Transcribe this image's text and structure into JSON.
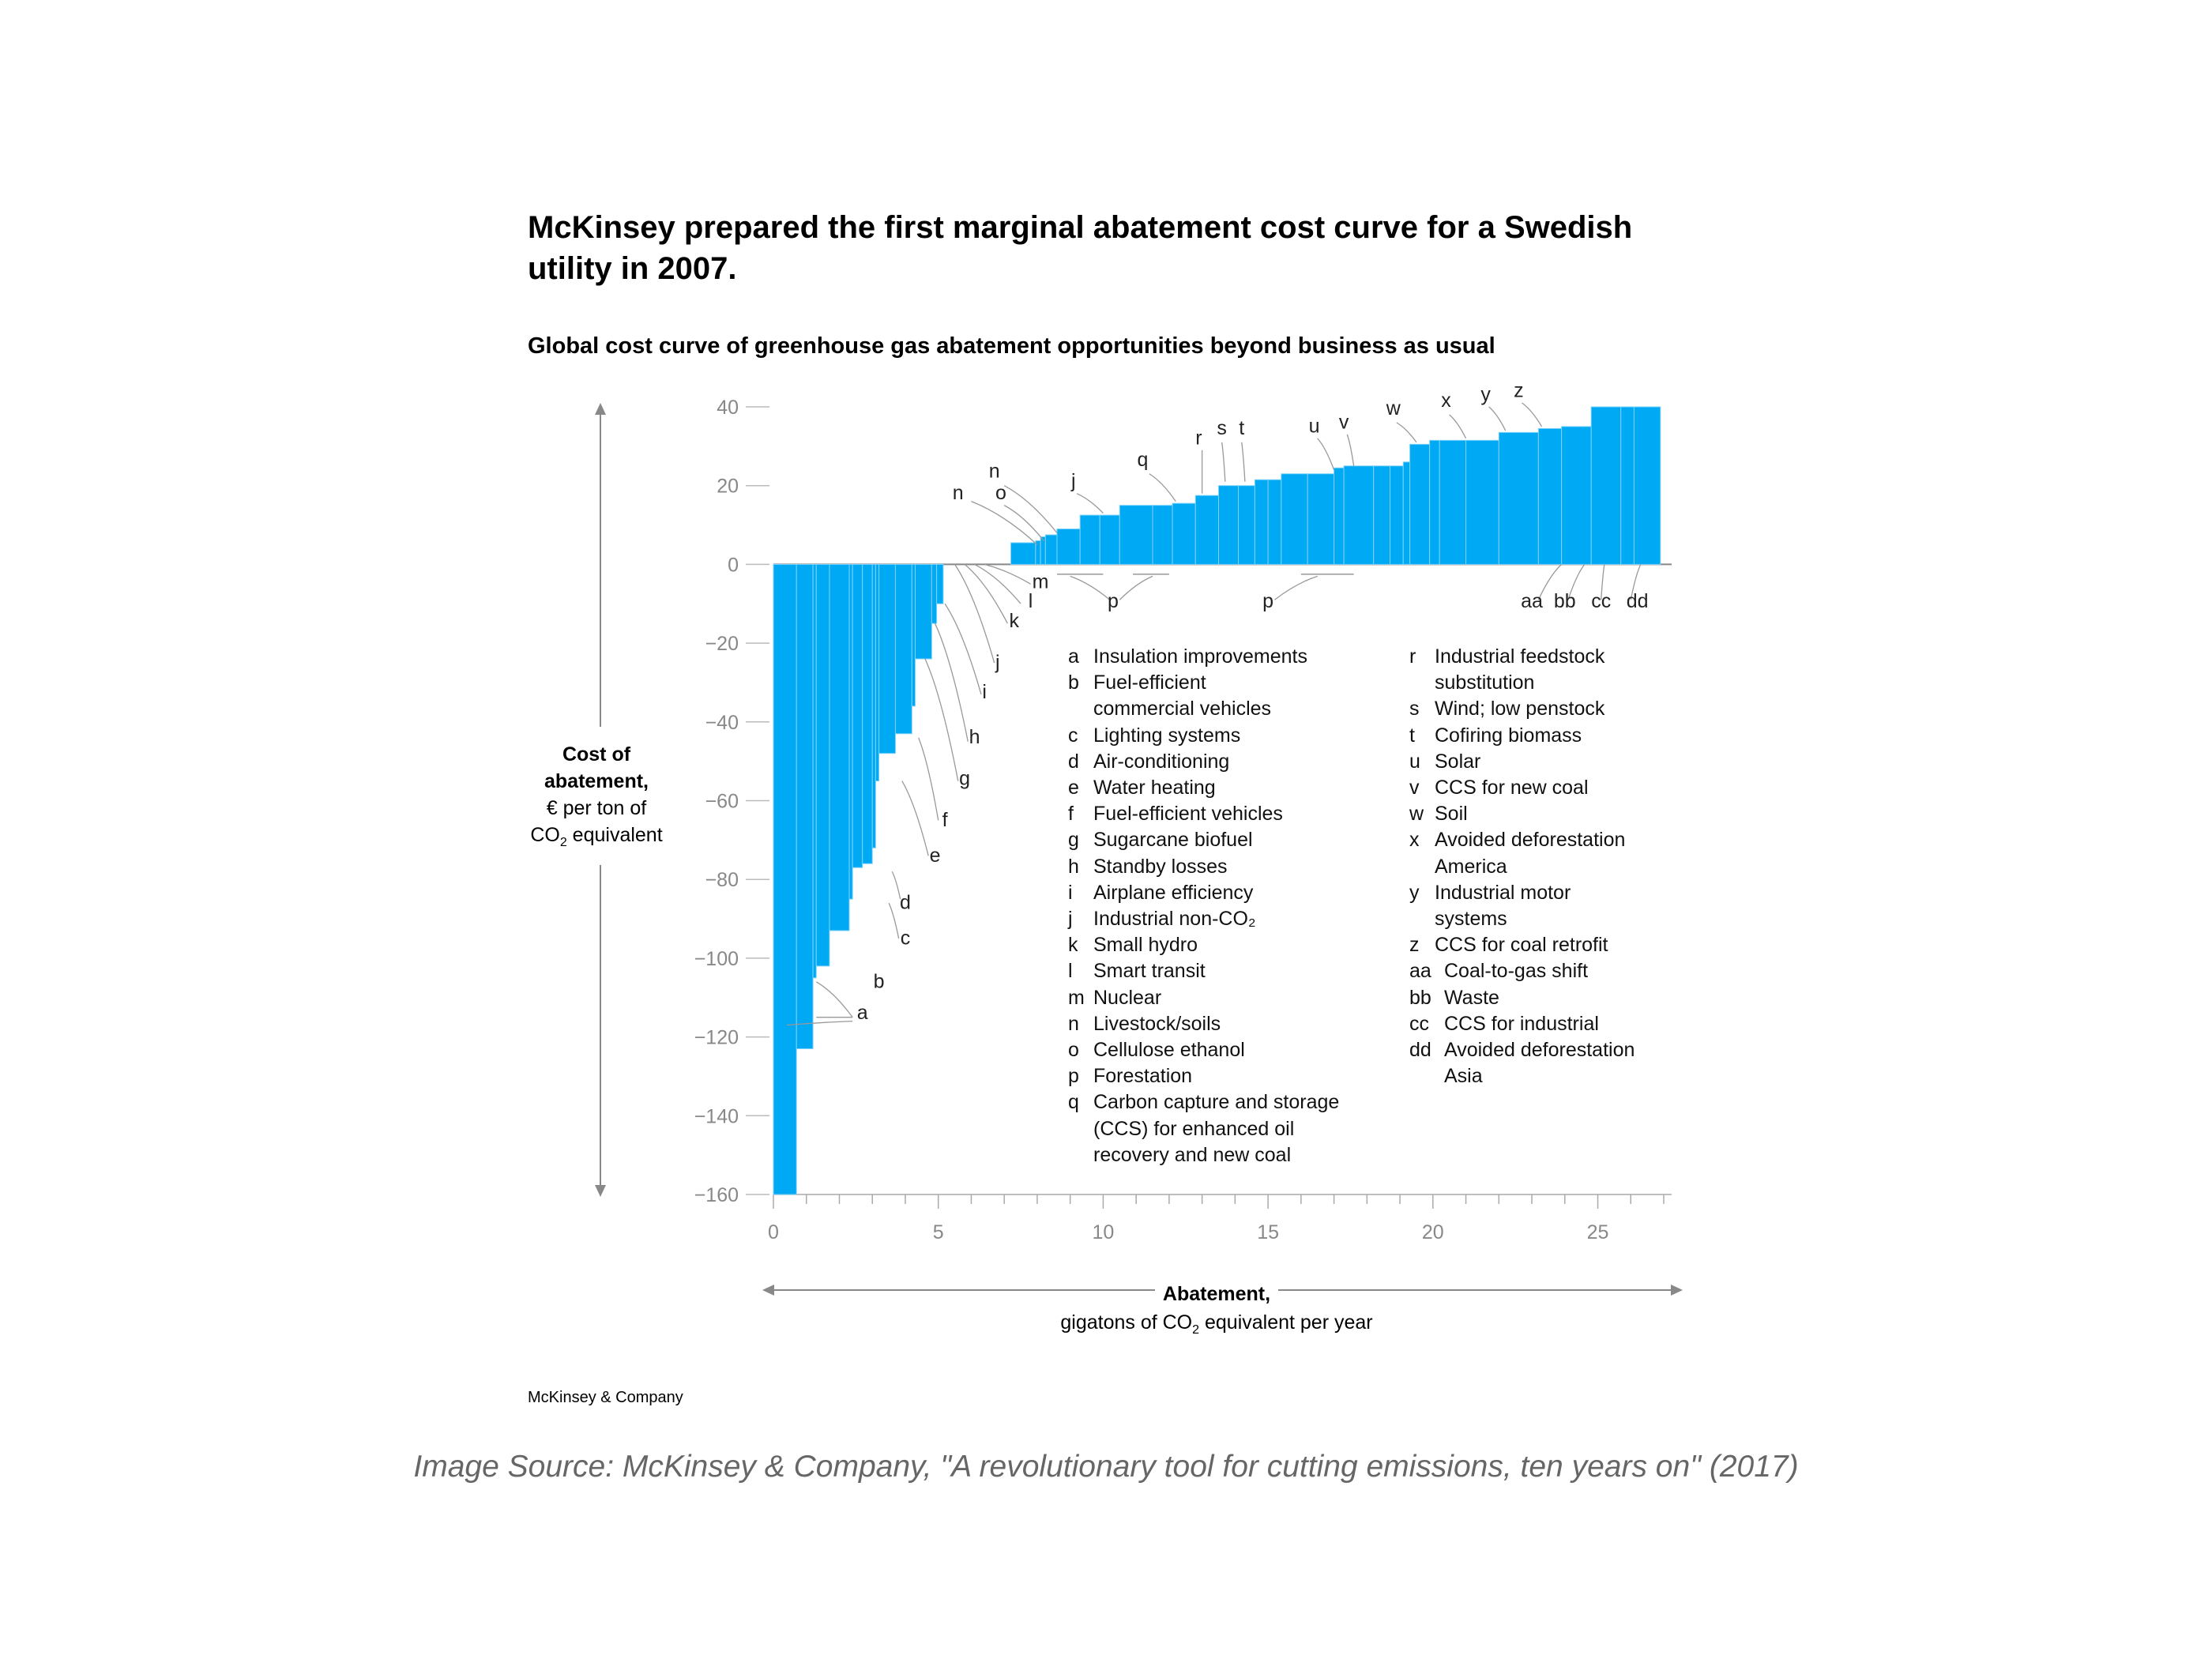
{
  "header": {
    "title": "McKinsey prepared the first marginal abatement cost curve for a Swedish utility in 2007.",
    "subtitle": "Global cost curve of greenhouse gas abatement opportunities beyond business as usual"
  },
  "axes": {
    "y_title": "Cost of abatement,",
    "y_unit_line1": "€ per ton of",
    "y_unit_line2_pre": "CO",
    "y_unit_line2_sub": "2",
    "y_unit_line2_post": " equivalent",
    "x_title": "Abatement,",
    "x_unit_pre": "gigatons of CO",
    "x_unit_sub": "2",
    "x_unit_post": " equivalent per year"
  },
  "legend_left": [
    {
      "key": "a",
      "text": "Insulation improvements"
    },
    {
      "key": "b",
      "text": "Fuel-efficient\ncommercial vehicles"
    },
    {
      "key": "c",
      "text": "Lighting systems"
    },
    {
      "key": "d",
      "text": "Air-conditioning"
    },
    {
      "key": "e",
      "text": "Water heating"
    },
    {
      "key": "f",
      "text": "Fuel-efficient vehicles"
    },
    {
      "key": "g",
      "text": "Sugarcane biofuel"
    },
    {
      "key": "h",
      "text": "Standby losses"
    },
    {
      "key": "i",
      "text": "Airplane efficiency"
    },
    {
      "key": "j",
      "text": "Industrial non-CO₂"
    },
    {
      "key": "k",
      "text": "Small hydro"
    },
    {
      "key": "l",
      "text": "Smart transit"
    },
    {
      "key": "m",
      "text": "Nuclear"
    },
    {
      "key": "n",
      "text": "Livestock/soils"
    },
    {
      "key": "o",
      "text": "Cellulose ethanol"
    },
    {
      "key": "p",
      "text": "Forestation"
    },
    {
      "key": "q",
      "text": "Carbon capture and storage\n(CCS) for enhanced oil\nrecovery and new coal"
    }
  ],
  "legend_right": [
    {
      "key": "r",
      "text": "Industrial feedstock\nsubstitution"
    },
    {
      "key": "s",
      "text": "Wind; low penstock"
    },
    {
      "key": "t",
      "text": "Cofiring biomass"
    },
    {
      "key": "u",
      "text": "Solar"
    },
    {
      "key": "v",
      "text": "CCS for new coal"
    },
    {
      "key": "w",
      "text": "Soil"
    },
    {
      "key": "x",
      "text": "Avoided deforestation\nAmerica"
    },
    {
      "key": "y",
      "text": "Industrial motor\nsystems"
    },
    {
      "key": "z",
      "text": "CCS for coal retrofit"
    },
    {
      "key": "aa",
      "text": "Coal-to-gas shift"
    },
    {
      "key": "bb",
      "text": "Waste"
    },
    {
      "key": "cc",
      "text": "CCS for industrial"
    },
    {
      "key": "dd",
      "text": "Avoided deforestation\nAsia"
    }
  ],
  "footer": {
    "brand": "McKinsey & Company",
    "source": "Image Source: McKinsey & Company, \"A revolutionary tool for cutting emissions, ten years on\" (2017)"
  },
  "colors": {
    "bar": "#00a9f4",
    "axis": "#888888",
    "leader": "#999999"
  },
  "chart_data": {
    "type": "bar",
    "xlim": [
      0,
      27
    ],
    "ylim": [
      -160,
      40
    ],
    "x_ticks": [
      0,
      5,
      10,
      15,
      20,
      25
    ],
    "y_ticks": [
      40,
      20,
      0,
      -20,
      -40,
      -60,
      -80,
      -100,
      -120,
      -140,
      -160
    ],
    "y_tick_labels": [
      "40",
      "20",
      "0",
      "−20",
      "−40",
      "−60",
      "−80",
      "−100",
      "−120",
      "−140",
      "−160"
    ],
    "segments": [
      {
        "x0": 0.0,
        "x1": 0.7,
        "value": -160
      },
      {
        "x0": 0.7,
        "x1": 1.2,
        "value": -123
      },
      {
        "x0": 1.2,
        "x1": 1.3,
        "value": -105
      },
      {
        "x0": 1.3,
        "x1": 1.7,
        "value": -102
      },
      {
        "x0": 1.7,
        "x1": 2.3,
        "value": -93
      },
      {
        "x0": 2.3,
        "x1": 2.4,
        "value": -85
      },
      {
        "x0": 2.4,
        "x1": 2.7,
        "value": -77
      },
      {
        "x0": 2.7,
        "x1": 3.0,
        "value": -76
      },
      {
        "x0": 3.0,
        "x1": 3.1,
        "value": -72
      },
      {
        "x0": 3.1,
        "x1": 3.2,
        "value": -55
      },
      {
        "x0": 3.2,
        "x1": 3.7,
        "value": -48
      },
      {
        "x0": 3.7,
        "x1": 4.2,
        "value": -43
      },
      {
        "x0": 4.2,
        "x1": 4.3,
        "value": -36
      },
      {
        "x0": 4.3,
        "x1": 4.8,
        "value": -24
      },
      {
        "x0": 4.8,
        "x1": 4.95,
        "value": -15
      },
      {
        "x0": 4.95,
        "x1": 5.15,
        "value": -10
      },
      {
        "x0": 7.2,
        "x1": 7.95,
        "value": 5.5
      },
      {
        "x0": 7.95,
        "x1": 8.1,
        "value": 6
      },
      {
        "x0": 8.1,
        "x1": 8.25,
        "value": 7
      },
      {
        "x0": 8.25,
        "x1": 8.6,
        "value": 7.5
      },
      {
        "x0": 8.6,
        "x1": 9.3,
        "value": 9
      },
      {
        "x0": 9.3,
        "x1": 9.9,
        "value": 12.5
      },
      {
        "x0": 9.9,
        "x1": 10.5,
        "value": 12.5
      },
      {
        "x0": 10.5,
        "x1": 11.5,
        "value": 15
      },
      {
        "x0": 11.5,
        "x1": 12.1,
        "value": 15
      },
      {
        "x0": 12.1,
        "x1": 12.8,
        "value": 15.5
      },
      {
        "x0": 12.8,
        "x1": 13.5,
        "value": 17.5
      },
      {
        "x0": 13.5,
        "x1": 14.1,
        "value": 20
      },
      {
        "x0": 14.1,
        "x1": 14.6,
        "value": 20
      },
      {
        "x0": 14.6,
        "x1": 15.0,
        "value": 21.5
      },
      {
        "x0": 15.0,
        "x1": 15.4,
        "value": 21.5
      },
      {
        "x0": 15.4,
        "x1": 16.2,
        "value": 23
      },
      {
        "x0": 16.2,
        "x1": 17.0,
        "value": 23
      },
      {
        "x0": 17.0,
        "x1": 17.3,
        "value": 24.5
      },
      {
        "x0": 17.3,
        "x1": 18.2,
        "value": 25
      },
      {
        "x0": 18.2,
        "x1": 18.7,
        "value": 25
      },
      {
        "x0": 18.7,
        "x1": 19.1,
        "value": 25
      },
      {
        "x0": 19.1,
        "x1": 19.3,
        "value": 26
      },
      {
        "x0": 19.3,
        "x1": 19.9,
        "value": 30.5
      },
      {
        "x0": 19.9,
        "x1": 20.2,
        "value": 31.5
      },
      {
        "x0": 20.2,
        "x1": 21.0,
        "value": 31.5
      },
      {
        "x0": 21.0,
        "x1": 22.0,
        "value": 31.5
      },
      {
        "x0": 22.0,
        "x1": 23.2,
        "value": 33.5
      },
      {
        "x0": 23.2,
        "x1": 23.9,
        "value": 34.5
      },
      {
        "x0": 23.9,
        "x1": 24.8,
        "value": 35
      },
      {
        "x0": 24.8,
        "x1": 25.7,
        "value": 40
      },
      {
        "x0": 25.7,
        "x1": 26.1,
        "value": 40
      },
      {
        "x0": 26.1,
        "x1": 26.9,
        "value": 40
      }
    ],
    "bar_labels": [
      {
        "text": "a",
        "x": 2.7,
        "y": -115.5
      },
      {
        "text": "b",
        "x": 3.2,
        "y": -107.5
      },
      {
        "text": "c",
        "x": 4.0,
        "y": -96.5
      },
      {
        "text": "d",
        "x": 4.0,
        "y": -87.5
      },
      {
        "text": "e",
        "x": 4.9,
        "y": -75.5
      },
      {
        "text": "f",
        "x": 5.2,
        "y": -66.5
      },
      {
        "text": "g",
        "x": 5.8,
        "y": -56
      },
      {
        "text": "h",
        "x": 6.1,
        "y": -45.5
      },
      {
        "text": "i",
        "x": 6.4,
        "y": -34
      },
      {
        "text": "j",
        "x": 6.8,
        "y": -26.5
      },
      {
        "text": "k",
        "x": 7.3,
        "y": -16
      },
      {
        "text": "l",
        "x": 7.8,
        "y": -11
      },
      {
        "text": "m",
        "x": 8.1,
        "y": -6
      },
      {
        "text": "n",
        "x": 5.6,
        "y": 16.5
      },
      {
        "text": "o",
        "x": 6.9,
        "y": 16.5
      },
      {
        "text": "n",
        "x": 6.7,
        "y": 22
      },
      {
        "text": "j",
        "x": 9.1,
        "y": 19.5
      },
      {
        "text": "p",
        "x": 10.3,
        "y": -11
      },
      {
        "text": "p",
        "x": 15.0,
        "y": -11
      },
      {
        "text": "q",
        "x": 11.2,
        "y": 25
      },
      {
        "text": "r",
        "x": 12.9,
        "y": 30.5
      },
      {
        "text": "s",
        "x": 13.6,
        "y": 33
      },
      {
        "text": "t",
        "x": 14.2,
        "y": 33
      },
      {
        "text": "u",
        "x": 16.4,
        "y": 33.5
      },
      {
        "text": "v",
        "x": 17.3,
        "y": 34.5
      },
      {
        "text": "w",
        "x": 18.8,
        "y": 38
      },
      {
        "text": "x",
        "x": 20.4,
        "y": 40
      },
      {
        "text": "y",
        "x": 21.6,
        "y": 41.5
      },
      {
        "text": "z",
        "x": 22.6,
        "y": 42.5
      },
      {
        "text": "aa",
        "x": 23.0,
        "y": -11
      },
      {
        "text": "bb",
        "x": 24.0,
        "y": -11
      },
      {
        "text": "cc",
        "x": 25.1,
        "y": -11
      },
      {
        "text": "dd",
        "x": 26.2,
        "y": -11
      }
    ]
  }
}
